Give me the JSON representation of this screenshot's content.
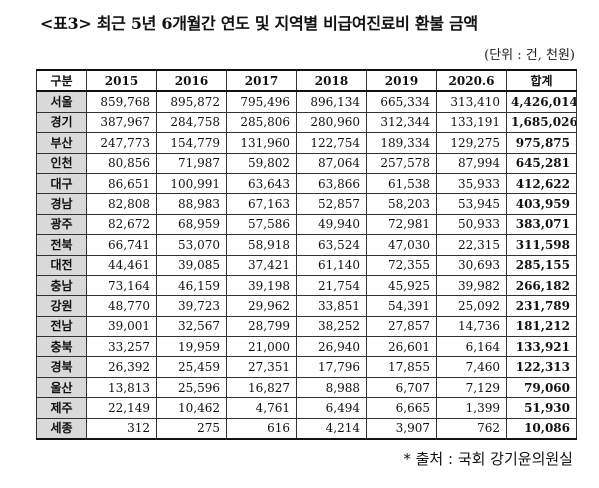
{
  "title": "<표3> 최근 5년 6개월간 연도 및 지역별 비급여진료비 환불 금액",
  "unit": "(단위 : 건, 천원)",
  "source": "* 출처 : 국회 강기윤의원실",
  "table": {
    "headers": [
      "구분",
      "2015",
      "2016",
      "2017",
      "2018",
      "2019",
      "2020.6",
      "합계"
    ],
    "rows": [
      [
        "서울",
        "859,768",
        "895,872",
        "795,496",
        "896,134",
        "665,334",
        "313,410",
        "4,426,014"
      ],
      [
        "경기",
        "387,967",
        "284,758",
        "285,806",
        "280,960",
        "312,344",
        "133,191",
        "1,685,026"
      ],
      [
        "부산",
        "247,773",
        "154,779",
        "131,960",
        "122,754",
        "189,334",
        "129,275",
        "975,875"
      ],
      [
        "인천",
        "80,856",
        "71,987",
        "59,802",
        "87,064",
        "257,578",
        "87,994",
        "645,281"
      ],
      [
        "대구",
        "86,651",
        "100,991",
        "63,643",
        "63,866",
        "61,538",
        "35,933",
        "412,622"
      ],
      [
        "경남",
        "82,808",
        "88,983",
        "67,163",
        "52,857",
        "58,203",
        "53,945",
        "403,959"
      ],
      [
        "광주",
        "82,672",
        "68,959",
        "57,586",
        "49,940",
        "72,981",
        "50,933",
        "383,071"
      ],
      [
        "전북",
        "66,741",
        "53,070",
        "58,918",
        "63,524",
        "47,030",
        "22,315",
        "311,598"
      ],
      [
        "대전",
        "44,461",
        "39,085",
        "37,421",
        "61,140",
        "72,355",
        "30,693",
        "285,155"
      ],
      [
        "충남",
        "73,164",
        "46,159",
        "39,198",
        "21,754",
        "45,925",
        "39,982",
        "266,182"
      ],
      [
        "강원",
        "48,770",
        "39,723",
        "29,962",
        "33,851",
        "54,391",
        "25,092",
        "231,789"
      ],
      [
        "전남",
        "39,001",
        "32,567",
        "28,799",
        "38,252",
        "27,857",
        "14,736",
        "181,212"
      ],
      [
        "충북",
        "33,257",
        "19,959",
        "21,000",
        "26,940",
        "26,601",
        "6,164",
        "133,921"
      ],
      [
        "경북",
        "26,392",
        "25,459",
        "27,351",
        "17,796",
        "17,855",
        "7,460",
        "122,313"
      ],
      [
        "울산",
        "13,813",
        "25,596",
        "16,827",
        "8,988",
        "6,707",
        "7,129",
        "79,060"
      ],
      [
        "제주",
        "22,149",
        "10,462",
        "4,761",
        "6,494",
        "6,665",
        "1,399",
        "51,930"
      ],
      [
        "세종",
        "312",
        "275",
        "616",
        "4,214",
        "3,907",
        "762",
        "10,086"
      ]
    ]
  }
}
